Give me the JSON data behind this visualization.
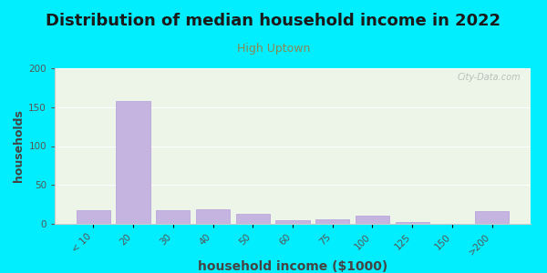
{
  "title": "Distribution of median household income in 2022",
  "subtitle": "High Uptown",
  "xlabel": "household income ($1000)",
  "ylabel": "households",
  "categories": [
    "< 10",
    "20",
    "30",
    "40",
    "50",
    "60",
    "75",
    "100",
    "125",
    "150",
    ">200"
  ],
  "values": [
    18,
    158,
    17,
    19,
    13,
    5,
    6,
    11,
    2,
    0,
    16
  ],
  "bar_color": "#c5b3e0",
  "bar_edge_color": "#b39ddb",
  "background_outer": "#00eeff",
  "background_plot": "#edf5e8",
  "ylim": [
    0,
    200
  ],
  "yticks": [
    0,
    50,
    100,
    150,
    200
  ],
  "title_fontsize": 13,
  "subtitle_fontsize": 9,
  "xlabel_fontsize": 10,
  "ylabel_fontsize": 9,
  "watermark": "City-Data.com"
}
